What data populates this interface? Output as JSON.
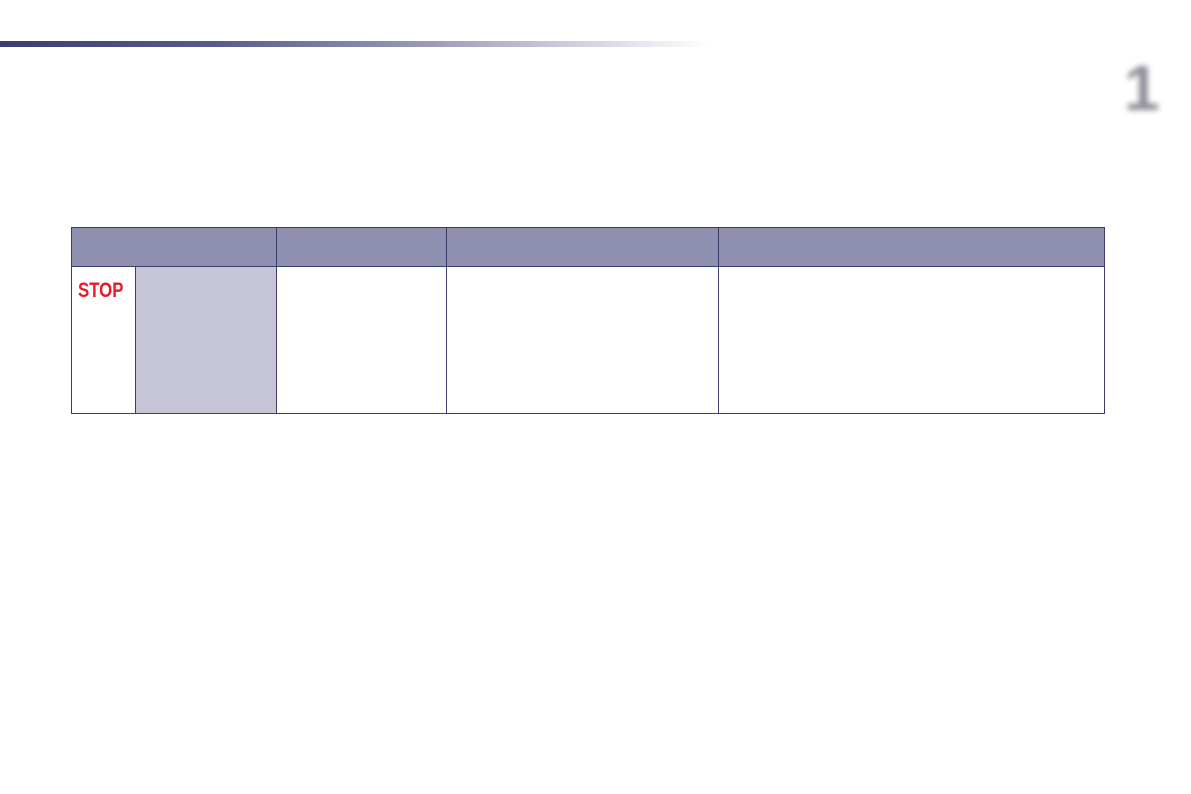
{
  "page": {
    "chapter_number": "1",
    "accent_color": "#3b3d73",
    "header_color": "#8f90af"
  },
  "table": {
    "headers": [
      "",
      "",
      "",
      ""
    ],
    "rows": [
      {
        "icon_text": "STOP",
        "cells": [
          "",
          "",
          "",
          ""
        ]
      }
    ]
  }
}
